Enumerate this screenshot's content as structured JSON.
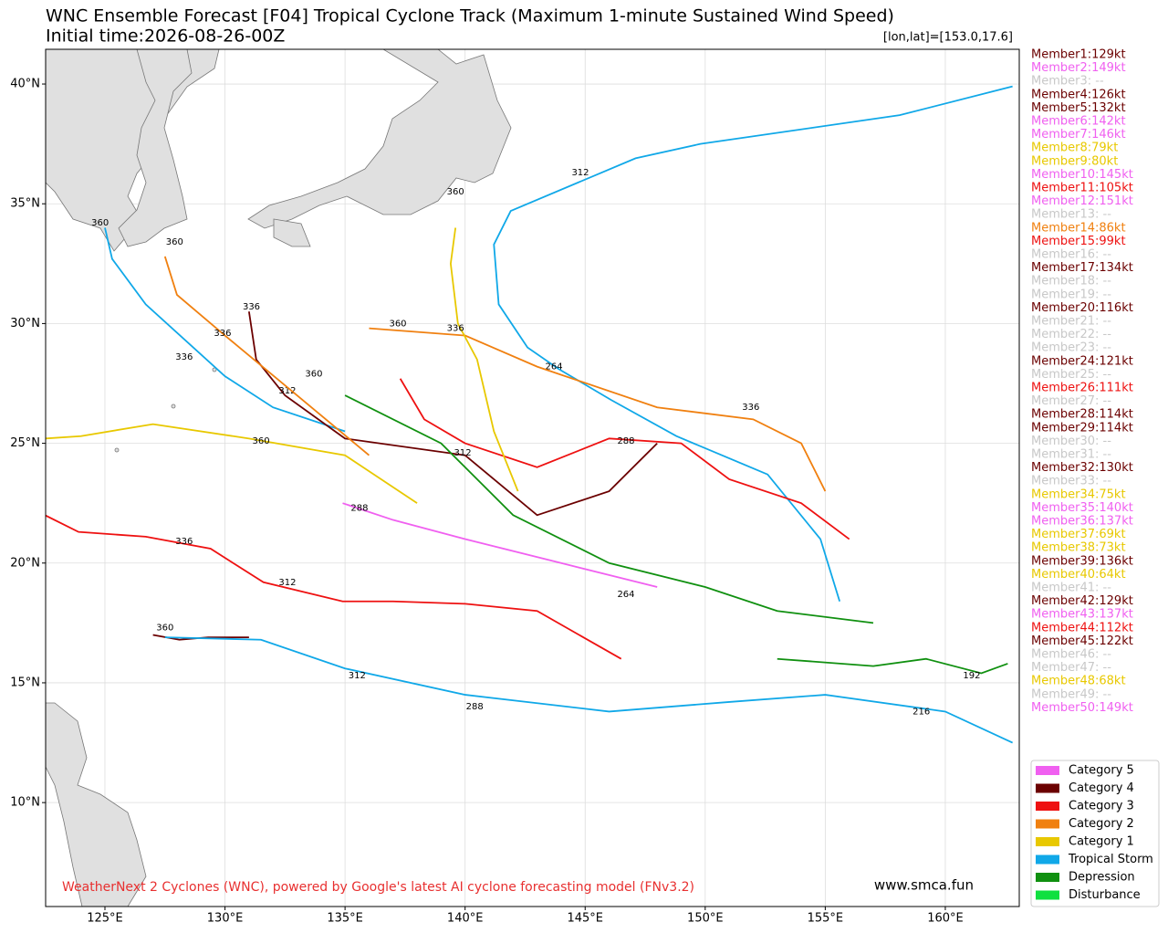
{
  "chart_data": {
    "type": "track-map",
    "title": "WNC Ensemble Forecast [F04] Tropical Cyclone Track (Maximum 1-minute Sustained Wind Speed)",
    "subtitle": "Initial time:2026-08-26-00Z",
    "position_note": "[lon,lat]=[153.0,17.6]",
    "footer": "WeatherNext 2 Cyclones (WNC), powered by Google's latest AI cyclone forecasting model (FNv3.2)",
    "site": "www.smca.fun",
    "xlim": [
      122.53,
      163.08
    ],
    "ylim": [
      5.66,
      41.45
    ],
    "xticks": [
      {
        "value": 125,
        "label": "125°E"
      },
      {
        "value": 130,
        "label": "130°E"
      },
      {
        "value": 135,
        "label": "135°E"
      },
      {
        "value": 140,
        "label": "140°E"
      },
      {
        "value": 145,
        "label": "145°E"
      },
      {
        "value": 150,
        "label": "150°E"
      },
      {
        "value": 155,
        "label": "155°E"
      },
      {
        "value": 160,
        "label": "160°E"
      }
    ],
    "yticks": [
      {
        "value": 10,
        "label": "10°N"
      },
      {
        "value": 15,
        "label": "15°N"
      },
      {
        "value": 20,
        "label": "20°N"
      },
      {
        "value": 25,
        "label": "25°N"
      },
      {
        "value": 30,
        "label": "30°N"
      },
      {
        "value": 35,
        "label": "35°N"
      },
      {
        "value": 40,
        "label": "40°N"
      }
    ],
    "grid": true,
    "members": [
      {
        "label": "Member1:129kt",
        "color": "#6b0000"
      },
      {
        "label": "Member2:149kt",
        "color": "#f060f0"
      },
      {
        "label": "Member3: --",
        "color": "#c8c8c8"
      },
      {
        "label": "Member4:126kt",
        "color": "#6b0000"
      },
      {
        "label": "Member5:132kt",
        "color": "#6b0000"
      },
      {
        "label": "Member6:142kt",
        "color": "#f060f0"
      },
      {
        "label": "Member7:146kt",
        "color": "#f060f0"
      },
      {
        "label": "Member8:79kt",
        "color": "#e8c800"
      },
      {
        "label": "Member9:80kt",
        "color": "#e8c800"
      },
      {
        "label": "Member10:145kt",
        "color": "#f060f0"
      },
      {
        "label": "Member11:105kt",
        "color": "#ee1111"
      },
      {
        "label": "Member12:151kt",
        "color": "#f060f0"
      },
      {
        "label": "Member13: --",
        "color": "#c8c8c8"
      },
      {
        "label": "Member14:86kt",
        "color": "#f08010"
      },
      {
        "label": "Member15:99kt",
        "color": "#ee1111"
      },
      {
        "label": "Member16: --",
        "color": "#c8c8c8"
      },
      {
        "label": "Member17:134kt",
        "color": "#6b0000"
      },
      {
        "label": "Member18: --",
        "color": "#c8c8c8"
      },
      {
        "label": "Member19: --",
        "color": "#c8c8c8"
      },
      {
        "label": "Member20:116kt",
        "color": "#6b0000"
      },
      {
        "label": "Member21: --",
        "color": "#c8c8c8"
      },
      {
        "label": "Member22: --",
        "color": "#c8c8c8"
      },
      {
        "label": "Member23: --",
        "color": "#c8c8c8"
      },
      {
        "label": "Member24:121kt",
        "color": "#6b0000"
      },
      {
        "label": "Member25: --",
        "color": "#c8c8c8"
      },
      {
        "label": "Member26:111kt",
        "color": "#ee1111"
      },
      {
        "label": "Member27: --",
        "color": "#c8c8c8"
      },
      {
        "label": "Member28:114kt",
        "color": "#6b0000"
      },
      {
        "label": "Member29:114kt",
        "color": "#6b0000"
      },
      {
        "label": "Member30: --",
        "color": "#c8c8c8"
      },
      {
        "label": "Member31: --",
        "color": "#c8c8c8"
      },
      {
        "label": "Member32:130kt",
        "color": "#6b0000"
      },
      {
        "label": "Member33: --",
        "color": "#c8c8c8"
      },
      {
        "label": "Member34:75kt",
        "color": "#e8c800"
      },
      {
        "label": "Member35:140kt",
        "color": "#f060f0"
      },
      {
        "label": "Member36:137kt",
        "color": "#f060f0"
      },
      {
        "label": "Member37:69kt",
        "color": "#e8c800"
      },
      {
        "label": "Member38:73kt",
        "color": "#e8c800"
      },
      {
        "label": "Member39:136kt",
        "color": "#6b0000"
      },
      {
        "label": "Member40:64kt",
        "color": "#e8c800"
      },
      {
        "label": "Member41: --",
        "color": "#c8c8c8"
      },
      {
        "label": "Member42:129kt",
        "color": "#6b0000"
      },
      {
        "label": "Member43:137kt",
        "color": "#f060f0"
      },
      {
        "label": "Member44:112kt",
        "color": "#ee1111"
      },
      {
        "label": "Member45:122kt",
        "color": "#6b0000"
      },
      {
        "label": "Member46: --",
        "color": "#c8c8c8"
      },
      {
        "label": "Member47: --",
        "color": "#c8c8c8"
      },
      {
        "label": "Member48:68kt",
        "color": "#e8c800"
      },
      {
        "label": "Member49: --",
        "color": "#c8c8c8"
      },
      {
        "label": "Member50:149kt",
        "color": "#f060f0"
      }
    ],
    "legend": [
      {
        "label": "Category 5",
        "color": "#f060f0"
      },
      {
        "label": "Category 4",
        "color": "#6b0000"
      },
      {
        "label": "Category 3",
        "color": "#ee1111"
      },
      {
        "label": "Category 2",
        "color": "#f08010"
      },
      {
        "label": "Category 1",
        "color": "#e8c800"
      },
      {
        "label": "Tropical Storm",
        "color": "#10a8e8"
      },
      {
        "label": "Depression",
        "color": "#109010"
      },
      {
        "label": "Disturbance",
        "color": "#10e040"
      }
    ],
    "tracks": [
      {
        "color": "#10a8e8",
        "lon": [
          155.6,
          154.8,
          152.6,
          148.8,
          146.1,
          143.9,
          142.6,
          141.4,
          141.2,
          141.9,
          147.1,
          149.8,
          158.1,
          162.8
        ],
        "lat": [
          18.4,
          21.0,
          23.7,
          25.3,
          26.8,
          28.1,
          29.0,
          30.8,
          33.3,
          34.7,
          36.9,
          37.5,
          38.7,
          39.9
        ],
        "labels": [
          {
            "lon": 144.8,
            "lat": 36.3,
            "hour": 312
          },
          {
            "lon": 143.7,
            "lat": 28.2,
            "hour": 264
          }
        ]
      },
      {
        "color": "#ee1111",
        "lon": [
          146.5,
          143,
          140,
          137,
          134.9,
          131.6,
          129.4,
          126.7,
          123.9,
          122.5
        ],
        "lat": [
          16.0,
          18.0,
          18.3,
          18.4,
          18.4,
          19.2,
          20.6,
          21.1,
          21.3,
          22.0
        ],
        "labels": [
          {
            "lon": 132.6,
            "lat": 19.2,
            "hour": 312
          },
          {
            "lon": 128.3,
            "lat": 20.9,
            "hour": 336
          }
        ]
      },
      {
        "color": "#e8c800",
        "lon": [
          138.0,
          135.0,
          131.0,
          127.0,
          124.0,
          122.5
        ],
        "lat": [
          22.5,
          24.5,
          25.2,
          25.8,
          25.3,
          25.2
        ],
        "labels": [
          {
            "lon": 131.5,
            "lat": 25.1,
            "hour": 360
          }
        ]
      },
      {
        "color": "#6b0000",
        "lon": [
          131.0,
          129.3,
          128.1,
          127.0
        ],
        "lat": [
          16.9,
          16.9,
          16.8,
          17.0
        ],
        "labels": [
          {
            "lon": 127.5,
            "lat": 17.3,
            "hour": 360
          }
        ]
      },
      {
        "color": "#10a8e8",
        "lon": [
          135.0,
          132.0,
          130.0,
          126.7,
          125.3,
          125.0
        ],
        "lat": [
          25.5,
          26.5,
          27.8,
          30.8,
          32.7,
          34.0
        ],
        "labels": [
          {
            "lon": 124.8,
            "lat": 34.2,
            "hour": 360
          },
          {
            "lon": 128.3,
            "lat": 28.6,
            "hour": 336
          }
        ]
      },
      {
        "color": "#10a8e8",
        "lon": [
          162.8,
          160.0,
          155.0,
          151.0,
          146.0,
          140.0,
          135.0,
          131.5,
          127.5
        ],
        "lat": [
          12.5,
          13.8,
          14.5,
          14.2,
          13.8,
          14.5,
          15.6,
          16.8,
          16.9
        ],
        "labels": [
          {
            "lon": 135.5,
            "lat": 15.3,
            "hour": 312
          },
          {
            "lon": 140.4,
            "lat": 14.0,
            "hour": 288
          },
          {
            "lon": 159.0,
            "lat": 13.8,
            "hour": 216
          }
        ]
      },
      {
        "color": "#109010",
        "lon": [
          153.0,
          157.0,
          159.2,
          161.5,
          162.6
        ],
        "lat": [
          16.0,
          15.7,
          16.0,
          15.4,
          15.8
        ],
        "labels": [
          {
            "lon": 161.1,
            "lat": 15.3,
            "hour": 192
          }
        ]
      },
      {
        "color": "#f08010",
        "lon": [
          155.0,
          154.0,
          152.0,
          148.0,
          143.0,
          140.0,
          136.0
        ],
        "lat": [
          23.0,
          25.0,
          26.0,
          26.5,
          28.2,
          29.5,
          29.8
        ],
        "labels": [
          {
            "lon": 137.2,
            "lat": 30.0,
            "hour": 360
          },
          {
            "lon": 151.9,
            "lat": 26.5,
            "hour": 336
          }
        ]
      },
      {
        "color": "#ee1111",
        "lon": [
          156.0,
          154.0,
          151.0,
          149.0,
          146.0,
          143.0,
          140.0,
          138.3,
          137.3
        ],
        "lat": [
          21.0,
          22.5,
          23.5,
          25.0,
          25.2,
          24.0,
          25.0,
          26.0,
          27.7
        ],
        "labels": [
          {
            "lon": 133.7,
            "lat": 27.9,
            "hour": 360
          },
          {
            "lon": 146.7,
            "lat": 25.1,
            "hour": 288
          }
        ]
      },
      {
        "color": "#6b0000",
        "lon": [
          148.0,
          146.0,
          143.0,
          140.0,
          135.0,
          132.5,
          131.3,
          131.0
        ],
        "lat": [
          25.0,
          23.0,
          22.0,
          24.5,
          25.2,
          27.0,
          28.5,
          30.5
        ],
        "labels": [
          {
            "lon": 131.1,
            "lat": 30.7,
            "hour": 336
          },
          {
            "lon": 139.9,
            "lat": 24.6,
            "hour": 312
          }
        ]
      },
      {
        "color": "#109010",
        "lon": [
          157.0,
          153.0,
          150.0,
          146.0,
          142.0,
          139.0,
          135.0
        ],
        "lat": [
          17.5,
          18.0,
          19.0,
          20.0,
          22.0,
          25.0,
          27.0
        ],
        "labels": [
          {
            "lon": 132.6,
            "lat": 27.2,
            "hour": 312
          },
          {
            "lon": 146.7,
            "lat": 18.7,
            "hour": 264
          }
        ]
      },
      {
        "color": "#e8c800",
        "lon": [
          142.2,
          141.2,
          140.5,
          139.7,
          139.4,
          139.6
        ],
        "lat": [
          23.0,
          25.5,
          28.5,
          30.0,
          32.5,
          34.0
        ],
        "labels": [
          {
            "lon": 139.6,
            "lat": 35.5,
            "hour": 360
          },
          {
            "lon": 139.6,
            "lat": 29.8,
            "hour": 336
          }
        ]
      },
      {
        "color": "#f060f0",
        "lon": [
          148.0,
          144.0,
          140.0,
          137.0,
          134.9
        ],
        "lat": [
          19.0,
          20.0,
          21.0,
          21.8,
          22.5
        ],
        "labels": [
          {
            "lon": 135.6,
            "lat": 22.3,
            "hour": 288
          }
        ]
      },
      {
        "color": "#f08010",
        "lon": [
          136.0,
          133.0,
          130.0,
          128.0,
          127.5
        ],
        "lat": [
          24.5,
          27.0,
          29.5,
          31.2,
          32.8
        ],
        "labels": [
          {
            "lon": 127.9,
            "lat": 33.4,
            "hour": 360
          },
          {
            "lon": 129.9,
            "lat": 29.6,
            "hour": 336
          }
        ]
      }
    ]
  }
}
